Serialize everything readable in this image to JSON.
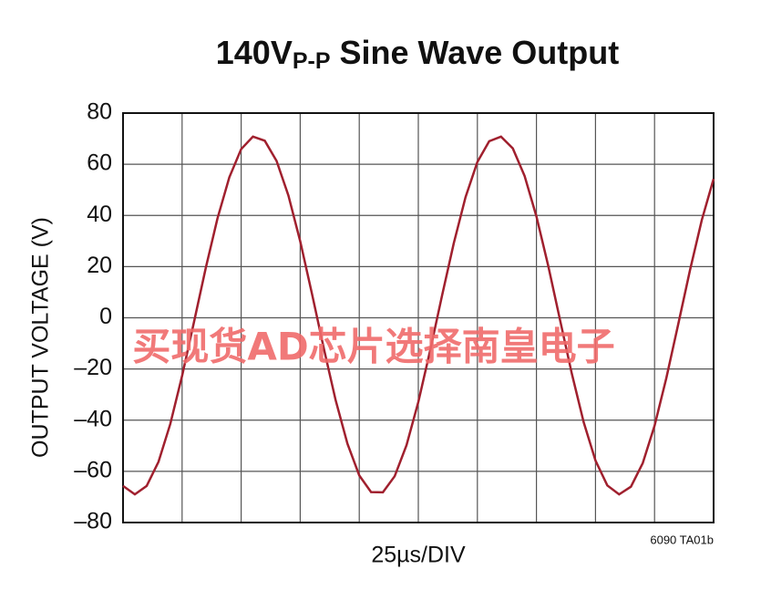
{
  "chart_data": {
    "type": "line",
    "title": {
      "main": "140V",
      "subscript": "P-P",
      "rest": " Sine Wave Output"
    },
    "xlabel": "25µs/DIV",
    "ylabel": "OUTPUT VOLTAGE (V)",
    "note": "6090 TA01b",
    "watermark": "买现货AD芯片选择南皇电子",
    "xlim": [
      0,
      250
    ],
    "xticks": [
      0,
      25,
      50,
      75,
      100,
      125,
      150,
      175,
      200,
      225,
      250
    ],
    "ylim": [
      -80,
      80
    ],
    "yticks": [
      {
        "value": -80,
        "label": "–80"
      },
      {
        "value": -60,
        "label": "–60"
      },
      {
        "value": -40,
        "label": "–40"
      },
      {
        "value": -20,
        "label": "–20"
      },
      0,
      20,
      40,
      60,
      80
    ],
    "grid": true,
    "x": [
      0,
      5,
      10,
      15,
      20,
      25,
      30,
      35,
      40,
      45,
      50,
      55,
      60,
      65,
      70,
      75,
      80,
      85,
      90,
      95,
      100,
      105,
      110,
      115,
      120,
      125,
      130,
      135,
      140,
      145,
      150,
      155,
      160,
      165,
      170,
      175,
      180,
      185,
      190,
      195,
      200,
      205,
      210,
      215,
      220,
      225,
      230,
      235,
      240,
      245,
      250
    ],
    "series": [
      {
        "name": "Output",
        "color": "#a0202e",
        "values": [
          -65.7,
          -69,
          -65.7,
          -56.3,
          -41.5,
          -22.7,
          -1.8,
          19.4,
          38.9,
          54.9,
          65.9,
          70.8,
          69.2,
          61.3,
          47.8,
          29.9,
          9.3,
          -12.0,
          -32.2,
          -49.2,
          -61.6,
          -68.1,
          -68.2,
          -61.9,
          -49.8,
          -32.9,
          -12.8,
          8.5,
          29.1,
          47.2,
          60.9,
          69.0,
          70.8,
          66.2,
          55.4,
          39.6,
          20.3,
          -0.9,
          -21.9,
          -40.8,
          -55.8,
          -65.5,
          -69.0,
          -66.0,
          -56.8,
          -42.2,
          -23.5,
          -2.6,
          18.6,
          38.2,
          54.3
        ]
      }
    ]
  }
}
